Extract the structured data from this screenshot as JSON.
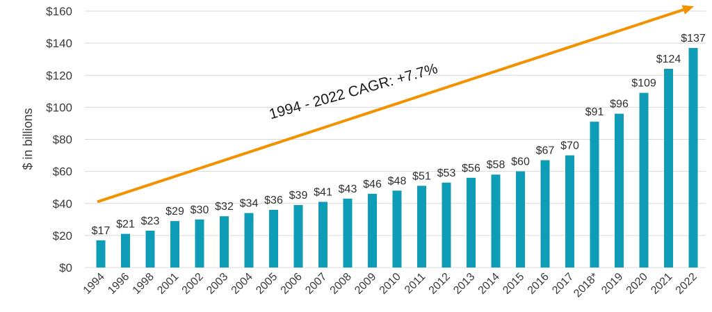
{
  "chart_data": {
    "type": "bar",
    "title": "",
    "xlabel": "",
    "ylabel": "$ in billions",
    "ylim": [
      0,
      160
    ],
    "yticks": [
      0,
      20,
      40,
      60,
      80,
      100,
      120,
      140,
      160
    ],
    "ytick_labels": [
      "$0",
      "$20",
      "$40",
      "$60",
      "$80",
      "$100",
      "$120",
      "$140",
      "$160"
    ],
    "grid": true,
    "categories": [
      "1994",
      "1996",
      "1998",
      "2001",
      "2002",
      "2003",
      "2004",
      "2005",
      "2006",
      "2007",
      "2008",
      "2009",
      "2010",
      "2011",
      "2012",
      "2013",
      "2014",
      "2015",
      "2016",
      "2017",
      "2018*",
      "2019",
      "2020",
      "2021",
      "2022"
    ],
    "values": [
      17,
      21,
      23,
      29,
      30,
      32,
      34,
      36,
      39,
      41,
      43,
      46,
      48,
      51,
      53,
      56,
      58,
      60,
      67,
      70,
      91,
      96,
      109,
      124,
      137
    ],
    "value_labels": [
      "$17",
      "$21",
      "$23",
      "$29",
      "$30",
      "$32",
      "$34",
      "$36",
      "$39",
      "$41",
      "$43",
      "$46",
      "$48",
      "$51",
      "$53",
      "$56",
      "$58",
      "$60",
      "$67",
      "$70",
      "$91",
      "$96",
      "$109",
      "$124",
      "$137"
    ],
    "annotation": {
      "text": "1994 - 2022 CAGR: +7.7%",
      "start_value": 41,
      "end_value": 163
    },
    "colors": {
      "bar": "#0e9cb6",
      "arrow": "#f39200",
      "grid": "#d9d9d9"
    }
  }
}
